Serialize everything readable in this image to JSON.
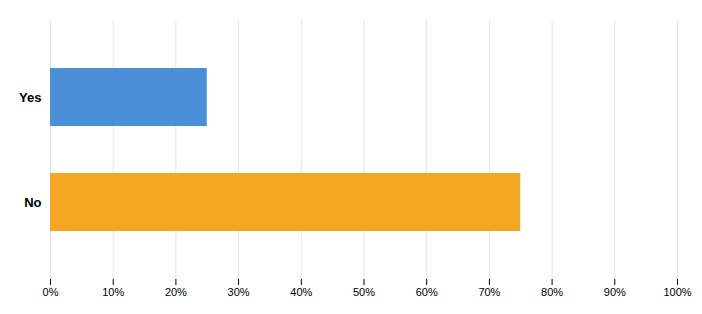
{
  "chart_data": {
    "type": "bar",
    "orientation": "horizontal",
    "categories": [
      "No",
      "Yes"
    ],
    "values": [
      75,
      25
    ],
    "colors": [
      "#F5A623",
      "#4A90D9"
    ],
    "xlim": [
      0,
      100
    ],
    "xticks": [
      {
        "value": 0,
        "label": "0%"
      },
      {
        "value": 10,
        "label": "10%"
      },
      {
        "value": 20,
        "label": "20%"
      },
      {
        "value": 30,
        "label": "30%"
      },
      {
        "value": 40,
        "label": "40%"
      },
      {
        "value": 50,
        "label": "50%"
      },
      {
        "value": 60,
        "label": "60%"
      },
      {
        "value": 70,
        "label": "70%"
      },
      {
        "value": 80,
        "label": "80%"
      },
      {
        "value": 90,
        "label": "90%"
      },
      {
        "value": 100,
        "label": "100%"
      }
    ],
    "grid": true
  }
}
